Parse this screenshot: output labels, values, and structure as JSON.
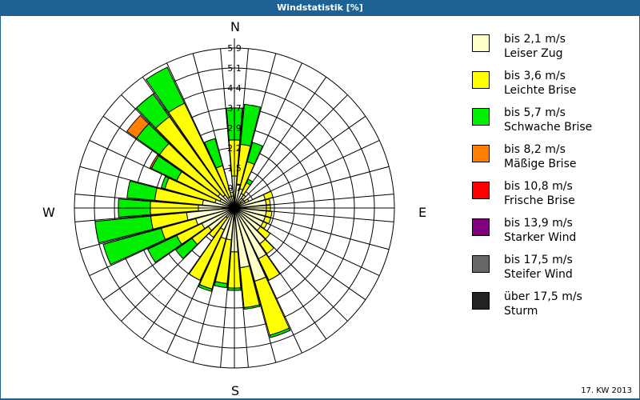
{
  "header": {
    "title": "Windstatistik [%]"
  },
  "footer": {
    "period": "17. KW 2013"
  },
  "directions": {
    "n": "N",
    "e": "E",
    "s": "S",
    "w": "W"
  },
  "legend": [
    {
      "line1": "bis 2,1 m/s",
      "line2": "Leiser Zug",
      "color": "#ffffcc"
    },
    {
      "line1": "bis 3,6 m/s",
      "line2": "Leichte Brise",
      "color": "#ffff00"
    },
    {
      "line1": "bis 5,7 m/s",
      "line2": "Schwache Brise",
      "color": "#00ee00"
    },
    {
      "line1": "bis 8,2 m/s",
      "line2": "Mäßige Brise",
      "color": "#ff8000"
    },
    {
      "line1": "bis 10,8 m/s",
      "line2": "Frische Brise",
      "color": "#ff0000"
    },
    {
      "line1": "bis 13,9 m/s",
      "line2": "Starker Wind",
      "color": "#800080"
    },
    {
      "line1": "bis 17,5 m/s",
      "line2": "Steifer Wind",
      "color": "#666666"
    },
    {
      "line1": "über 17,5 m/s",
      "line2": "Sturm",
      "color": "#222222"
    }
  ],
  "chart_data": {
    "type": "wind-rose",
    "title": "Windstatistik [%]",
    "subtitle": "17. KW 2013",
    "radial_unit": "%",
    "ring_labels": [
      "0,7",
      "1,5",
      "2,2",
      "2,9",
      "3,7",
      "4,4",
      "5,1",
      "5,9"
    ],
    "rlim": [
      0,
      5.9
    ],
    "sector_width_deg": 10,
    "directions_deg": [
      0,
      10,
      20,
      30,
      40,
      50,
      60,
      70,
      80,
      90,
      100,
      110,
      120,
      130,
      140,
      150,
      160,
      170,
      180,
      190,
      200,
      210,
      220,
      230,
      240,
      250,
      260,
      270,
      280,
      290,
      300,
      310,
      320,
      330,
      340,
      350
    ],
    "series_names": [
      "bis 2,1 m/s",
      "bis 3,6 m/s",
      "bis 5,7 m/s",
      "bis 8,2 m/s"
    ],
    "series_colors": [
      "#ffffcc",
      "#ffff00",
      "#00ee00",
      "#ff8000"
    ],
    "cumulative_percent": [
      [
        1.18,
        2.51,
        3.69,
        3.69
      ],
      [
        0.89,
        2.36,
        3.84,
        3.84
      ],
      [
        0.74,
        1.77,
        2.51,
        2.51
      ],
      [
        0.59,
        1.03,
        1.18,
        1.18
      ],
      [
        0.44,
        0.59,
        0.59,
        0.59
      ],
      [
        0.3,
        0.44,
        0.44,
        0.44
      ],
      [
        0.44,
        0.59,
        0.59,
        0.59
      ],
      [
        1.18,
        1.48,
        1.48,
        1.48
      ],
      [
        1.18,
        1.33,
        1.33,
        1.33
      ],
      [
        1.18,
        1.33,
        1.33,
        1.33
      ],
      [
        1.18,
        1.39,
        1.39,
        1.39
      ],
      [
        1.18,
        1.39,
        1.39,
        1.39
      ],
      [
        1.18,
        1.33,
        1.33,
        1.33
      ],
      [
        1.18,
        1.62,
        1.62,
        1.62
      ],
      [
        1.62,
        2.07,
        2.07,
        2.07
      ],
      [
        2.07,
        2.95,
        2.95,
        2.95
      ],
      [
        2.8,
        4.87,
        4.96,
        4.96
      ],
      [
        2.21,
        3.69,
        3.75,
        3.75
      ],
      [
        1.62,
        2.95,
        3.04,
        3.04
      ],
      [
        1.18,
        2.8,
        2.95,
        2.95
      ],
      [
        1.18,
        3.1,
        3.19,
        3.19
      ],
      [
        0.89,
        2.95,
        2.95,
        2.95
      ],
      [
        0.44,
        1.33,
        1.33,
        1.33
      ],
      [
        1.18,
        1.92,
        2.66,
        2.66
      ],
      [
        1.33,
        2.36,
        3.54,
        3.54
      ],
      [
        1.48,
        2.8,
        5.02,
        5.02
      ],
      [
        1.77,
        3.1,
        5.16,
        5.16
      ],
      [
        1.33,
        3.1,
        4.28,
        4.28
      ],
      [
        1.18,
        2.95,
        3.98,
        3.98
      ],
      [
        0.74,
        2.66,
        2.8,
        2.8
      ],
      [
        0.59,
        2.36,
        3.39,
        3.45
      ],
      [
        0.74,
        3.39,
        4.43,
        4.87
      ],
      [
        0.59,
        4.13,
        5.16,
        5.16
      ],
      [
        0.44,
        4.28,
        5.75,
        5.75
      ],
      [
        0.44,
        1.62,
        2.66,
        2.66
      ],
      [
        0.44,
        0.59,
        0.59,
        0.59
      ]
    ],
    "legend_position": "right",
    "grid": true
  }
}
